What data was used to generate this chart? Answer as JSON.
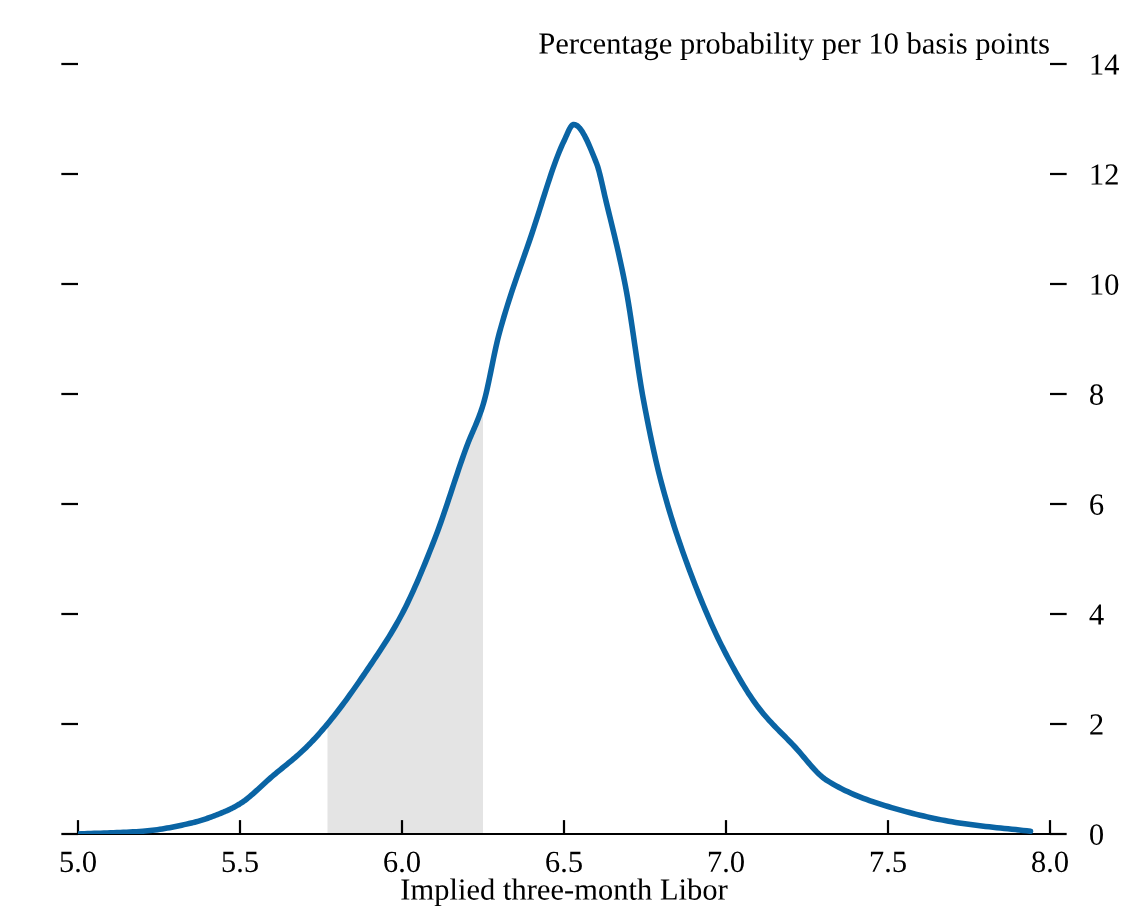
{
  "chart_data": {
    "type": "line",
    "ylabel": "Percentage probability per 10 basis points",
    "xlabel": "Implied three-month Libor",
    "x": [
      5.0,
      5.2,
      5.35,
      5.45,
      5.5,
      5.6,
      5.7,
      5.77,
      5.9,
      6.0,
      6.1,
      6.2,
      6.25,
      6.3,
      6.4,
      6.5,
      6.53,
      6.6,
      6.63,
      6.69,
      6.745,
      6.8,
      6.9,
      7.0,
      7.1,
      7.21,
      7.31,
      7.5,
      7.72,
      7.94
    ],
    "series": [
      {
        "type": "area",
        "color": "#e4e4e4",
        "x": [
          5.77,
          5.9,
          6.0,
          6.1,
          6.2,
          6.25
        ],
        "values": [
          2.0,
          3.05,
          4.0,
          5.35,
          7.05,
          7.8
        ]
      },
      {
        "color": "#0a64a4",
        "values": [
          0.0,
          0.05,
          0.2,
          0.4,
          0.55,
          1.05,
          1.55,
          2.0,
          3.05,
          4.0,
          5.35,
          7.05,
          7.8,
          9.1,
          10.9,
          12.6,
          12.9,
          12.2,
          11.5,
          9.95,
          7.9,
          6.4,
          4.6,
          3.27,
          2.3,
          1.6,
          0.98,
          0.5,
          0.2,
          0.05
        ]
      }
    ],
    "xlim": [
      5.0,
      8.0
    ],
    "xticks": [
      {
        "value": 5.0,
        "label": "5.0"
      },
      {
        "value": 5.5,
        "label": "5.5"
      },
      {
        "value": 6.0,
        "label": "6.0"
      },
      {
        "value": 6.5,
        "label": "6.5"
      },
      {
        "value": 7.0,
        "label": "7.0"
      },
      {
        "value": 7.5,
        "label": "7.5"
      },
      {
        "value": 8.0,
        "label": "8.0"
      }
    ],
    "ylim": [
      0,
      14
    ],
    "yticks": [
      0,
      2,
      4,
      6,
      8,
      10,
      12,
      14
    ],
    "grid": false,
    "legend": false,
    "marker": "none",
    "line_style": "solid"
  }
}
